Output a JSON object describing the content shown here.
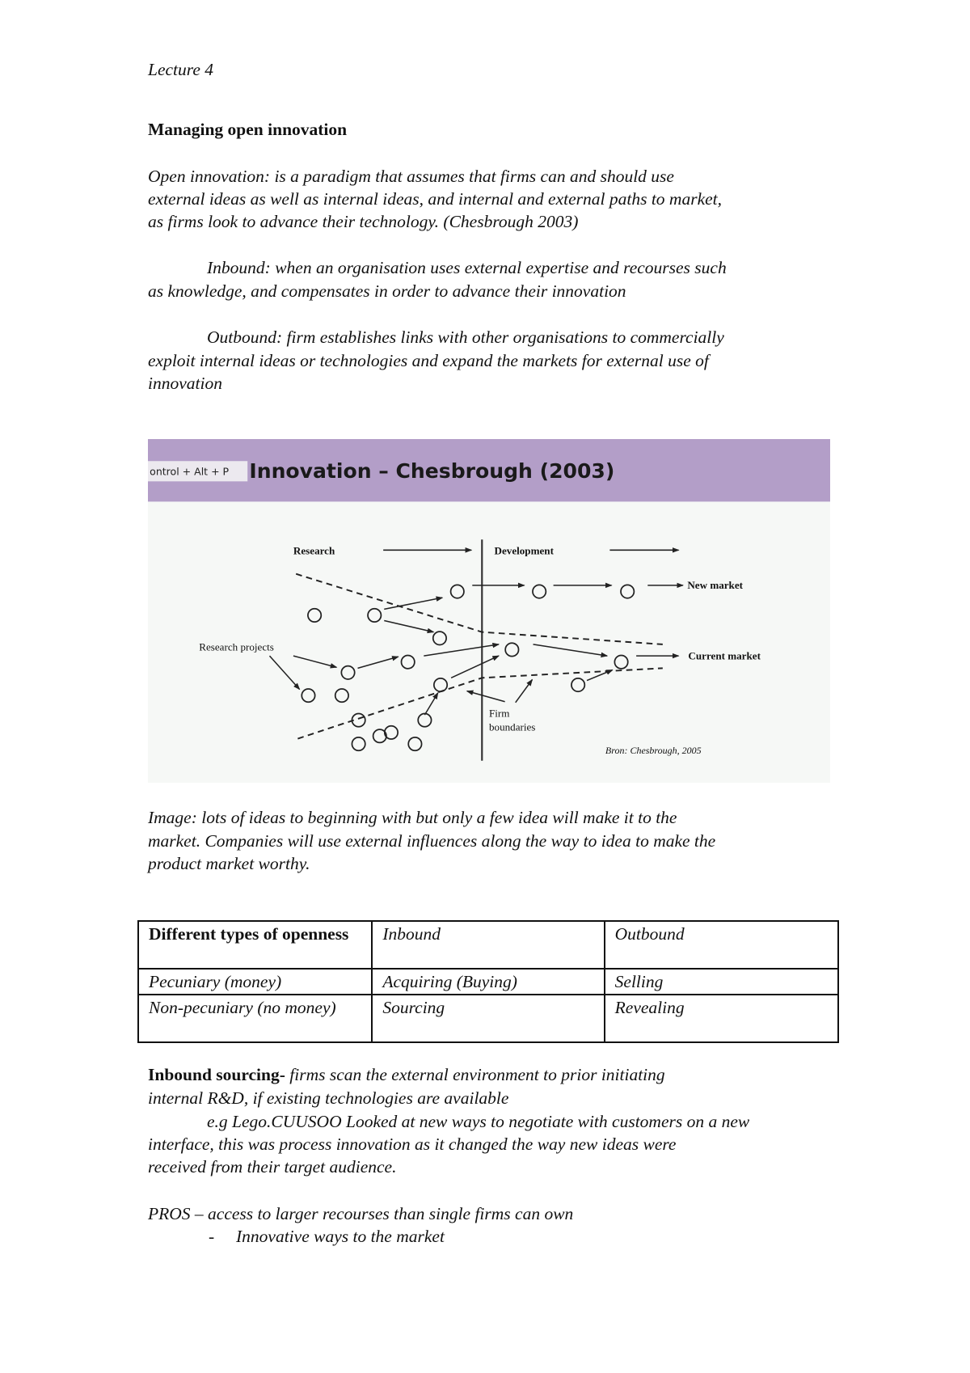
{
  "header": {
    "lecture": "Lecture 4"
  },
  "title": "Managing open innovation",
  "definition": {
    "lines": [
      "Open innovation: is a paradigm that assumes that firms can and should use",
      "external ideas as well as internal ideas, and internal and external paths to market,",
      "as firms look to advance their technology. (Chesbrough 2003)"
    ]
  },
  "inbound": {
    "lines": [
      "Inbound:  when an organisation uses external expertise and recourses such",
      "as knowledge, and compensates in order to advance their innovation"
    ]
  },
  "outbound": {
    "lines": [
      "Outbound: firm establishes links with other organisations to commercially",
      "exploit internal ideas or technologies and expand the markets for external use of",
      "innovation"
    ]
  },
  "figure": {
    "shortcut_tooltip": "ontrol + Alt + P",
    "title": "Innovation – Chesbrough (2003)",
    "header_color": "#b39ec8",
    "labels": {
      "research": "Research",
      "development": "Development",
      "new_market": "New market",
      "current_market": "Current market",
      "research_projects": "Research projects",
      "firm": "Firm",
      "boundaries": "boundaries",
      "source": "Bron:  Chesbrough, 2005"
    }
  },
  "caption": {
    "lines": [
      "Image: lots of ideas to beginning with but only a few idea will make it to the",
      "market. Companies will use external influences along the way to idea to make the",
      "product market worthy."
    ]
  },
  "table": {
    "headers": [
      "Different types of openness",
      "Inbound",
      "Outbound"
    ],
    "rows": [
      [
        "Pecuniary (money)",
        "Acquiring (Buying)",
        "Selling"
      ],
      [
        "Non-pecuniary (no money)",
        "Sourcing",
        "Revealing"
      ]
    ]
  },
  "inbound_sourcing": {
    "label": "Inbound sourcing-",
    "line1_rest": " firms scan the external environment to prior initiating",
    "line2": "internal R&D, if existing technologies are available",
    "example_lines": [
      "e.g Lego.CUUSOO Looked at new ways to negotiate with customers on a new",
      "interface, this was process innovation as it changed the way new ideas were",
      "received from their target audience."
    ]
  },
  "pros": {
    "line": "PROS – access to larger recourses than single firms can own",
    "bullet_marker": "-",
    "bullets": [
      "Innovative ways to the market"
    ]
  }
}
